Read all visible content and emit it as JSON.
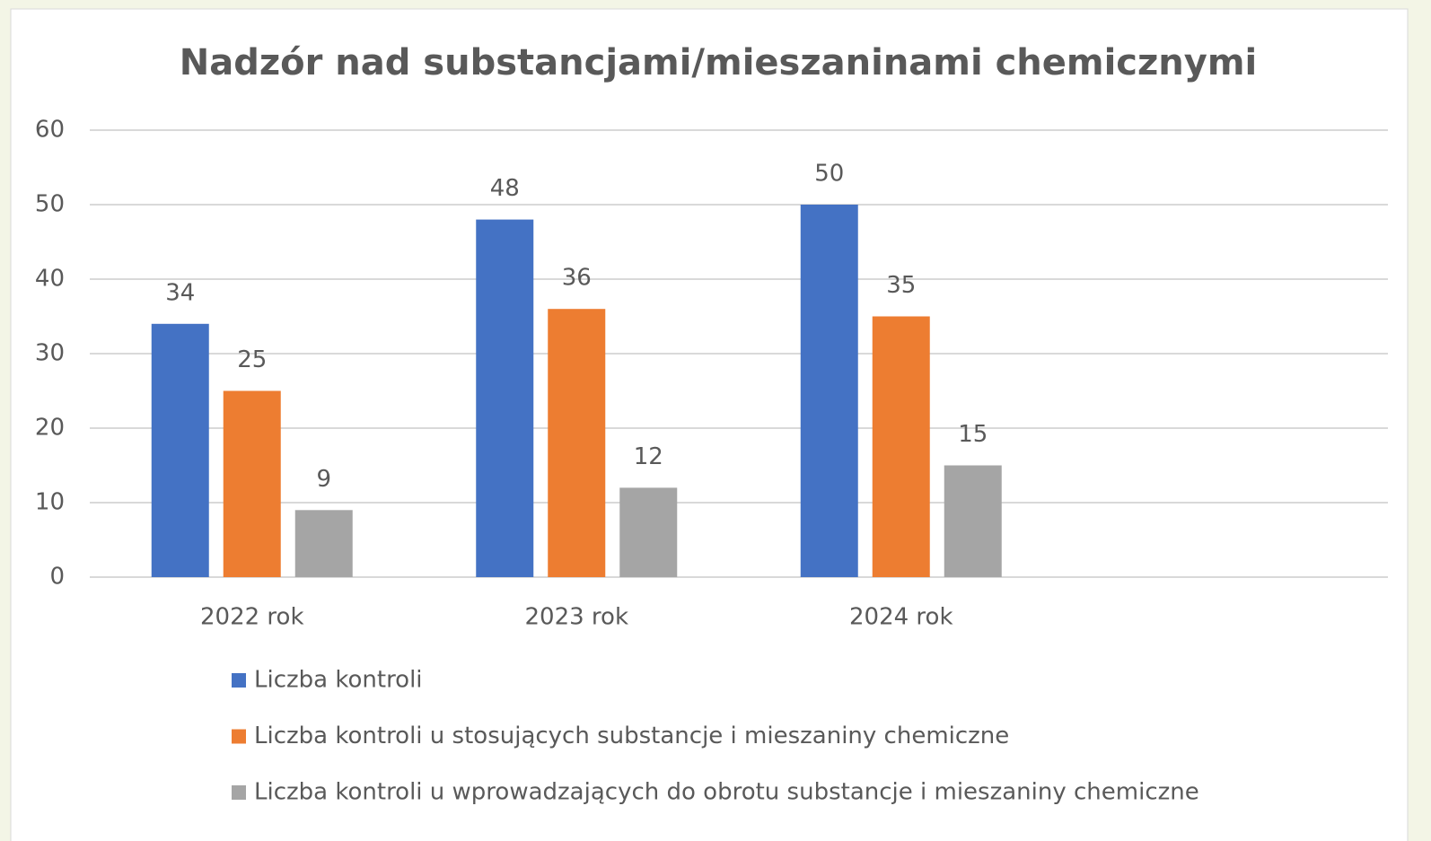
{
  "chart_data": {
    "type": "bar",
    "title": "Nadzór nad substancjami/mieszaninami chemicznymi",
    "categories": [
      "2022 rok",
      "2023 rok",
      "2024 rok",
      null
    ],
    "series": [
      {
        "name": "Liczba kontroli",
        "color": "#4472c4",
        "values": [
          34,
          48,
          50,
          null
        ]
      },
      {
        "name": "Liczba kontroli u stosujących substancje i mieszaniny chemiczne",
        "color": "#ed7d31",
        "values": [
          25,
          36,
          35,
          null
        ]
      },
      {
        "name": "Liczba kontroli u wprowadzających do obrotu substancje i mieszaniny chemiczne",
        "color": "#a5a5a5",
        "values": [
          9,
          12,
          15,
          null
        ]
      }
    ],
    "ylim": [
      0,
      60
    ],
    "yticks": [
      0,
      10,
      20,
      30,
      40,
      50,
      60
    ],
    "grid": true,
    "legend": "bottom"
  }
}
